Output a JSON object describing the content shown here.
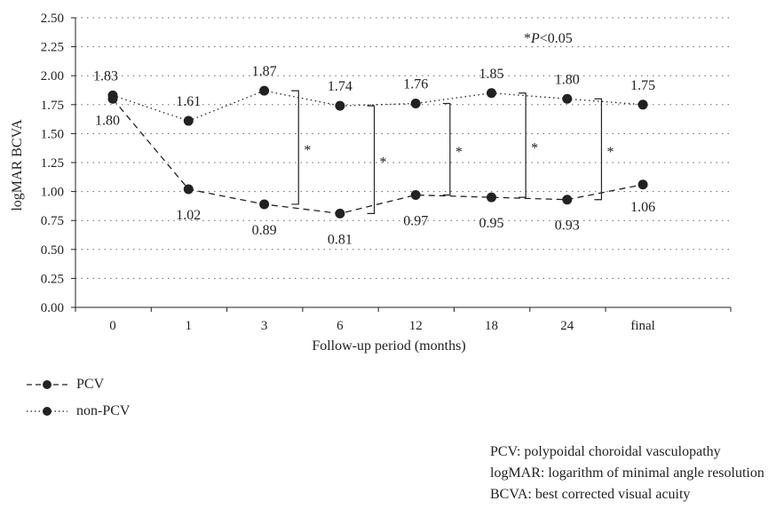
{
  "chart_data": {
    "type": "line",
    "categories": [
      "0",
      "1",
      "3",
      "6",
      "12",
      "18",
      "24",
      "final"
    ],
    "series": [
      {
        "name": "PCV",
        "line_style": "dashed",
        "color": "#222222",
        "values": [
          1.8,
          1.02,
          0.89,
          0.81,
          0.97,
          0.95,
          0.93,
          1.06
        ],
        "labels": [
          "1.80",
          "1.02",
          "0.89",
          "0.81",
          "0.97",
          "0.95",
          "0.93",
          "1.06"
        ]
      },
      {
        "name": "non-PCV",
        "line_style": "dotted",
        "color": "#222222",
        "values": [
          1.83,
          1.61,
          1.87,
          1.74,
          1.76,
          1.85,
          1.8,
          1.75
        ],
        "labels": [
          "1.83",
          "1.61",
          "1.87",
          "1.74",
          "1.76",
          "1.85",
          "1.80",
          "1.75"
        ]
      }
    ],
    "xlabel": "Follow-up period (months)",
    "ylabel": "logMAR BCVA",
    "ylim": [
      0,
      2.5
    ],
    "yticks": [
      "0.00",
      "0.25",
      "0.50",
      "0.75",
      "1.00",
      "1.25",
      "1.50",
      "1.75",
      "2.00",
      "2.25",
      "2.50"
    ],
    "grid": "horizontal dotted",
    "significance": {
      "marker": "*",
      "categories": [
        "3",
        "6",
        "12",
        "18",
        "24"
      ]
    },
    "annotation": {
      "star": "*",
      "p_italic": "P",
      "rest": "<0.05"
    }
  },
  "legend": {
    "items": [
      {
        "name": "PCV"
      },
      {
        "name": "non-PCV"
      }
    ]
  },
  "footnotes": [
    "PCV: polypoidal choroidal vasculopathy",
    "logMAR: logarithm of minimal angle resolution",
    "BCVA: best corrected visual acuity"
  ]
}
